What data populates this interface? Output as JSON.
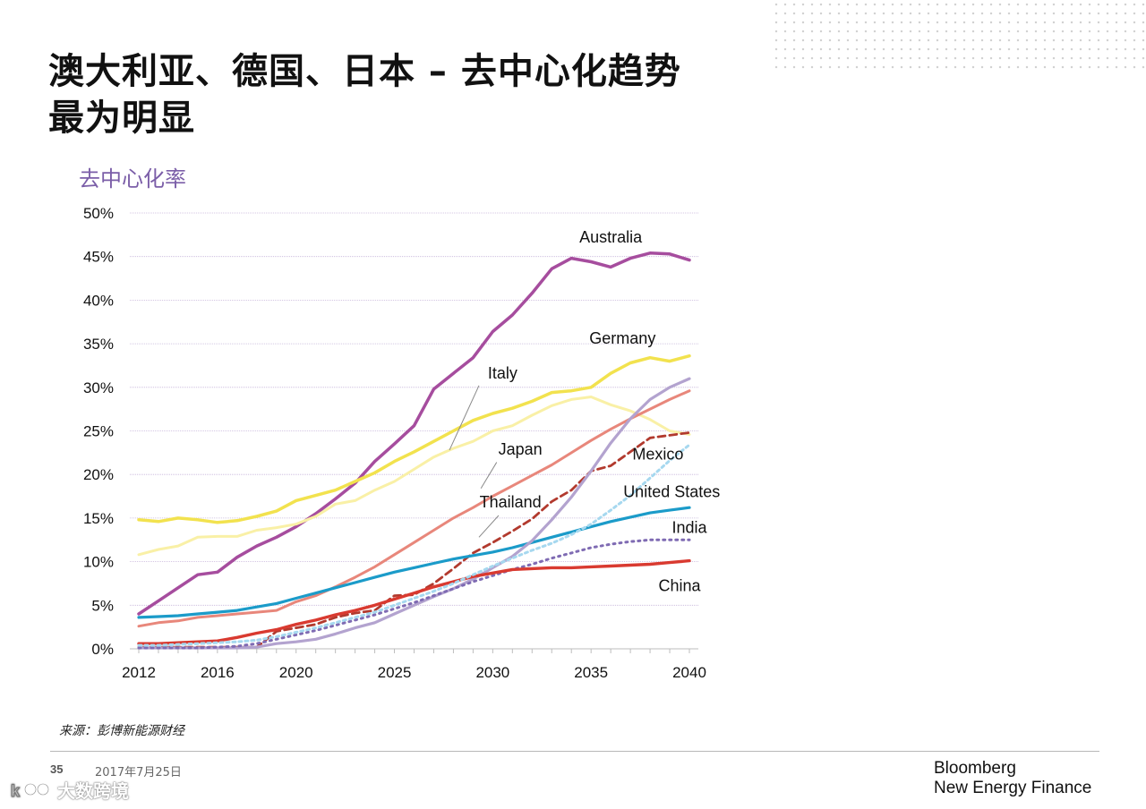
{
  "slide": {
    "title_line1": "澳大利亚、德国、日本 – 去中心化趋势",
    "title_line2": "最为明显",
    "chart_subtitle": "去中心化率",
    "source": "来源：彭博新能源财经",
    "page_number": "35",
    "date": "2017年7月25日",
    "brand_line1": "Bloomberg",
    "brand_line2": "New Energy Finance",
    "watermark_text": "大数跨境"
  },
  "chart_data": {
    "type": "line",
    "title": "去中心化率",
    "xlabel": "",
    "ylabel": "",
    "xlim": [
      2012,
      2040
    ],
    "ylim": [
      0,
      50
    ],
    "yticks": [
      "0%",
      "5%",
      "10%",
      "15%",
      "20%",
      "25%",
      "30%",
      "35%",
      "40%",
      "45%",
      "50%"
    ],
    "xticks": [
      {
        "value": 2012,
        "label": "2012"
      },
      {
        "value": 2016,
        "label": "2016"
      },
      {
        "value": 2020,
        "label": "2020"
      },
      {
        "value": 2025,
        "label": "2025"
      },
      {
        "value": 2030,
        "label": "2030"
      },
      {
        "value": 2035,
        "label": "2035"
      },
      {
        "value": 2040,
        "label": "2040"
      }
    ],
    "grid": true,
    "x": [
      2012,
      2013,
      2014,
      2015,
      2016,
      2017,
      2018,
      2019,
      2020,
      2021,
      2022,
      2023,
      2024,
      2025,
      2026,
      2027,
      2028,
      2029,
      2030,
      2031,
      2032,
      2033,
      2034,
      2035,
      2036,
      2037,
      2038,
      2039,
      2040
    ],
    "series": [
      {
        "name": "Australia",
        "color": "#a64d9e",
        "dash": "solid",
        "width": 3.5,
        "values": [
          4,
          5.5,
          7,
          8.5,
          8.8,
          10.5,
          11.8,
          12.8,
          14,
          15.5,
          17.2,
          19,
          21.5,
          23.5,
          25.6,
          29.8,
          31.6,
          33.4,
          36.4,
          38.3,
          40.8,
          43.6,
          44.8,
          44.4,
          43.8,
          44.8,
          45.4,
          45.3,
          44.6
        ]
      },
      {
        "name": "Germany",
        "color": "#f2e24e",
        "dash": "solid",
        "width": 3.5,
        "values": [
          14.8,
          14.6,
          15,
          14.8,
          14.5,
          14.7,
          15.2,
          15.8,
          17,
          17.6,
          18.2,
          19.2,
          20.2,
          21.5,
          22.6,
          23.8,
          25,
          26.2,
          27,
          27.6,
          28.4,
          29.4,
          29.6,
          30,
          31.6,
          32.8,
          33.4,
          33,
          33.6
        ]
      },
      {
        "name": "Italy",
        "color": "#f9f0a6",
        "dash": "solid",
        "width": 3,
        "values": [
          10.8,
          11.4,
          11.8,
          12.8,
          12.9,
          12.9,
          13.6,
          13.9,
          14.3,
          15.2,
          16.6,
          17,
          18.2,
          19.2,
          20.6,
          22,
          23,
          23.8,
          25,
          25.6,
          26.8,
          27.9,
          28.6,
          28.9,
          28,
          27.3,
          26.3,
          25,
          24.6
        ]
      },
      {
        "name": "Japan",
        "color": "#e8877b",
        "dash": "solid",
        "width": 3,
        "values": [
          2.6,
          3,
          3.2,
          3.6,
          3.8,
          4,
          4.2,
          4.4,
          5.4,
          6.1,
          7.1,
          8.2,
          9.4,
          10.8,
          12.2,
          13.6,
          15,
          16.2,
          17.5,
          18.7,
          19.9,
          21.1,
          22.5,
          23.9,
          25.2,
          26.4,
          27.5,
          28.6,
          29.6
        ]
      },
      {
        "name": "Mexico",
        "color": "#b23a2e",
        "dash": "8,5",
        "width": 2.8,
        "values": [
          0.2,
          0.2,
          0.2,
          0.2,
          0.2,
          0.2,
          0.2,
          2,
          2.4,
          2.8,
          3.6,
          4.1,
          4.4,
          6.1,
          6.2,
          7.5,
          9.2,
          11,
          12.2,
          13.5,
          14.9,
          16.9,
          18.2,
          20.4,
          21,
          22.6,
          24.2,
          24.5,
          24.8
        ]
      },
      {
        "name": "United States",
        "color": "#1b9bc9",
        "dash": "solid",
        "width": 3.2,
        "values": [
          3.6,
          3.7,
          3.8,
          4,
          4.2,
          4.4,
          4.8,
          5.2,
          5.8,
          6.4,
          7,
          7.6,
          8.2,
          8.8,
          9.3,
          9.8,
          10.3,
          10.7,
          11.1,
          11.6,
          12.2,
          12.8,
          13.4,
          14,
          14.6,
          15.1,
          15.6,
          15.9,
          16.2
        ]
      },
      {
        "name": "Thailand",
        "color": "#b3a3cf",
        "dash": "solid",
        "width": 3.2,
        "values": [
          0.1,
          0.1,
          0.1,
          0.1,
          0.1,
          0.1,
          0.2,
          0.6,
          0.8,
          1.1,
          1.7,
          2.4,
          3,
          4,
          5,
          6,
          6.9,
          8,
          9.3,
          10.6,
          12.4,
          14.8,
          17.4,
          20.4,
          23.6,
          26.4,
          28.6,
          30,
          31
        ]
      },
      {
        "name": "India",
        "color": "#7f6bb3",
        "dash": "2,5",
        "width": 3,
        "values": [
          0.1,
          0.1,
          0.1,
          0.1,
          0.2,
          0.3,
          0.6,
          1.1,
          1.6,
          2.1,
          2.7,
          3.3,
          3.9,
          4.6,
          5.3,
          6.1,
          6.9,
          7.7,
          8.4,
          9.1,
          9.7,
          10.4,
          11,
          11.6,
          12,
          12.3,
          12.5,
          12.5,
          12.5
        ]
      },
      {
        "name": "China",
        "color": "#d93a30",
        "dash": "solid",
        "width": 3.4,
        "values": [
          0.6,
          0.6,
          0.7,
          0.8,
          0.9,
          1.3,
          1.8,
          2.2,
          2.8,
          3.3,
          3.9,
          4.4,
          5,
          5.7,
          6.4,
          7.1,
          7.7,
          8.3,
          8.7,
          9.1,
          9.2,
          9.3,
          9.3,
          9.4,
          9.5,
          9.6,
          9.7,
          9.9,
          10.1
        ]
      },
      {
        "name": "",
        "color": "#a6d8ef",
        "dash": "3,4",
        "width": 3,
        "values": [
          0.4,
          0.4,
          0.5,
          0.6,
          0.7,
          0.8,
          1,
          1.4,
          1.9,
          2.4,
          3,
          3.6,
          4.2,
          5,
          5.8,
          6.6,
          7.5,
          8.5,
          9.5,
          10.4,
          11.3,
          12.1,
          13.1,
          14.3,
          15.9,
          17.6,
          19.6,
          21.6,
          23.4
        ]
      }
    ],
    "annotations": [
      {
        "text": "Australia",
        "x": 2036,
        "y": 46.6,
        "anchor": "middle"
      },
      {
        "text": "Germany",
        "x": 2036.6,
        "y": 35.0,
        "anchor": "middle"
      },
      {
        "text": "Italy",
        "x": 2030.5,
        "y": 31.0,
        "anchor": "middle",
        "leader": [
          2029.3,
          30.2,
          2027.8,
          22.8
        ]
      },
      {
        "text": "Japan",
        "x": 2031.4,
        "y": 22.3,
        "anchor": "middle",
        "leader": [
          2030.2,
          21.4,
          2029.4,
          18.4
        ]
      },
      {
        "text": "Thailand",
        "x": 2030.9,
        "y": 16.2,
        "anchor": "middle",
        "leader": [
          2030.3,
          15.3,
          2029.3,
          12.8
        ]
      },
      {
        "text": "Mexico",
        "x": 2038.4,
        "y": 21.7,
        "anchor": "middle"
      },
      {
        "text": "United States",
        "x": 2039.1,
        "y": 17.4,
        "anchor": "middle"
      },
      {
        "text": "India",
        "x": 2040,
        "y": 13.3,
        "anchor": "middle"
      },
      {
        "text": "China",
        "x": 2039.5,
        "y": 6.6,
        "anchor": "middle"
      }
    ]
  }
}
